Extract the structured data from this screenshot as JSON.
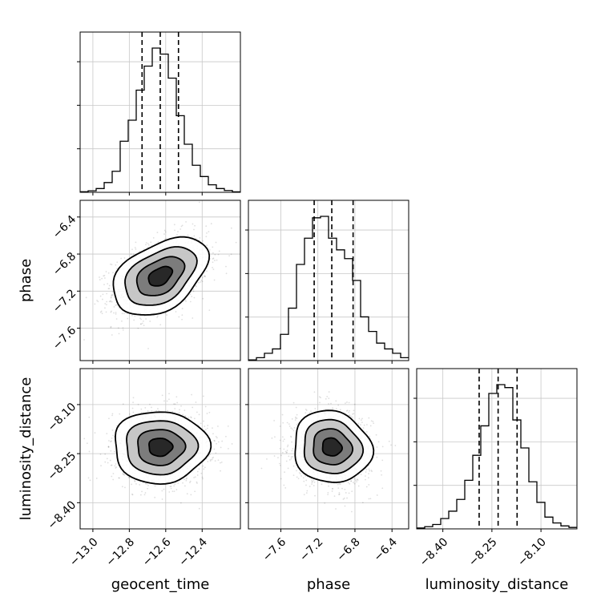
{
  "chart_data": {
    "type": "corner",
    "parameters": [
      "geocent_time",
      "phase",
      "luminosity_distance"
    ],
    "axis_labels": {
      "geocent_time": "geocent_time",
      "phase": "phase",
      "luminosity_distance": "luminosity_distance"
    },
    "ranges": {
      "geocent_time": [
        -13.07,
        -12.19
      ],
      "phase": [
        -7.95,
        -6.22
      ],
      "luminosity_distance": [
        -8.48,
        -7.99
      ]
    },
    "ticks": {
      "geocent_time": [
        -13.0,
        -12.8,
        -12.6,
        -12.4
      ],
      "phase": [
        -7.6,
        -7.2,
        -6.8,
        -6.4
      ],
      "luminosity_distance": [
        -8.4,
        -8.25,
        -8.1
      ]
    },
    "tick_labels": {
      "geocent_time": [
        "−13.0",
        "−12.8",
        "−12.6",
        "−12.4"
      ],
      "phase": [
        "−7.6",
        "−7.2",
        "−6.8",
        "−6.4"
      ],
      "luminosity_distance": [
        "−8.40",
        "−8.25",
        "−8.10"
      ]
    },
    "quantiles": {
      "geocent_time": [
        -12.73,
        -12.63,
        -12.53
      ],
      "phase": [
        -7.24,
        -7.05,
        -6.82
      ],
      "luminosity_distance": [
        -8.289,
        -8.231,
        -8.173
      ]
    },
    "histograms": {
      "geocent_time": {
        "edges": [
          -13.07,
          -13.026,
          -12.982,
          -12.938,
          -12.894,
          -12.85,
          -12.806,
          -12.762,
          -12.718,
          -12.674,
          -12.63,
          -12.586,
          -12.542,
          -12.498,
          -12.454,
          -12.41,
          -12.366,
          -12.322,
          -12.278,
          -12.234,
          -12.19
        ],
        "counts": [
          0.4,
          1,
          2.5,
          6.5,
          14,
          34,
          48,
          68,
          84,
          96,
          92,
          76,
          51,
          32,
          18,
          10.5,
          5,
          2.5,
          1.2,
          0.3
        ]
      },
      "phase": {
        "edges": [
          -7.95,
          -7.8635,
          -7.777,
          -7.6905,
          -7.604,
          -7.5175,
          -7.431,
          -7.3445,
          -7.258,
          -7.1715,
          -7.085,
          -6.9985,
          -6.912,
          -6.8255,
          -6.739,
          -6.6525,
          -6.566,
          -6.4795,
          -6.393,
          -6.3065,
          -6.22
        ],
        "counts": [
          0.5,
          2,
          5,
          8,
          18,
          36,
          66,
          84,
          98,
          99,
          84,
          76,
          70,
          55,
          30,
          20,
          12,
          8,
          5,
          2
        ]
      },
      "luminosity_distance": {
        "edges": [
          -8.48,
          -8.4555,
          -8.431,
          -8.4065,
          -8.382,
          -8.3575,
          -8.333,
          -8.3085,
          -8.284,
          -8.2595,
          -8.235,
          -8.2105,
          -8.186,
          -8.1615,
          -8.137,
          -8.1125,
          -8.088,
          -8.0635,
          -8.039,
          -8.0145,
          -7.99
        ],
        "counts": [
          0.6,
          1.5,
          3,
          7,
          12,
          20,
          33,
          50,
          70,
          92,
          98,
          96,
          74,
          55,
          32,
          18,
          8,
          4,
          2,
          1
        ]
      }
    },
    "joint_2d": [
      {
        "x": "geocent_time",
        "y": "phase",
        "mean": [
          -12.63,
          -7.04
        ],
        "sd": [
          0.13,
          0.21
        ],
        "corr": 0.42,
        "contour_levels_sigma": [
          0.5,
          1.0,
          1.5,
          2.0
        ]
      },
      {
        "x": "geocent_time",
        "y": "luminosity_distance",
        "mean": [
          -12.63,
          -8.23
        ],
        "sd": [
          0.13,
          0.055
        ],
        "corr": 0.0,
        "contour_levels_sigma": [
          0.5,
          1.0,
          1.5,
          2.0
        ]
      },
      {
        "x": "phase",
        "y": "luminosity_distance",
        "mean": [
          -7.05,
          -8.23
        ],
        "sd": [
          0.21,
          0.055
        ],
        "corr": -0.08,
        "contour_levels_sigma": [
          0.5,
          1.0,
          1.5,
          2.0
        ]
      }
    ],
    "grid": true,
    "legend": "none"
  }
}
